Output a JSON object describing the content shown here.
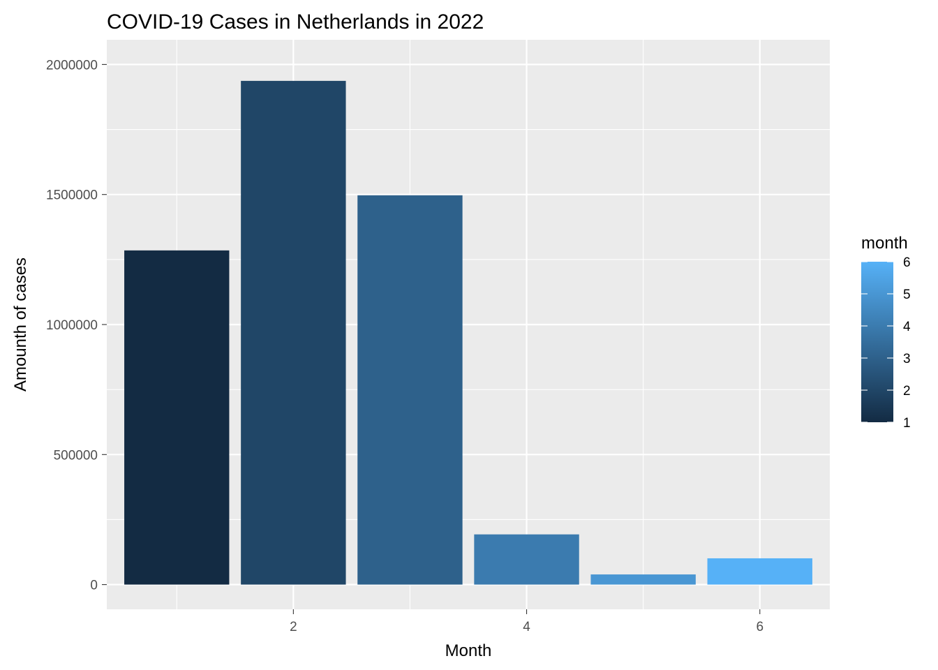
{
  "chart_data": {
    "type": "bar",
    "title": "COVID-19 Cases in Netherlands in 2022",
    "xlabel": "Month",
    "ylabel": "Amounth of cases",
    "x": [
      1,
      2,
      3,
      4,
      5,
      6
    ],
    "values": [
      1285000,
      1937000,
      1497000,
      193000,
      39000,
      101000
    ],
    "xlim": [
      0.4,
      6.6
    ],
    "ylim": [
      -95000,
      2095000
    ],
    "x_ticks": [
      2,
      4,
      6
    ],
    "x_tick_labels": [
      "2",
      "4",
      "6"
    ],
    "y_ticks": [
      0,
      500000,
      1000000,
      1500000,
      2000000
    ],
    "y_tick_labels": [
      "0",
      "500000",
      "1000000",
      "1500000",
      "2000000"
    ],
    "grid": true,
    "legend": {
      "title": "month",
      "type": "colorbar",
      "position": "right",
      "range": [
        1,
        6
      ],
      "ticks": [
        1,
        2,
        3,
        4,
        5,
        6
      ],
      "tick_labels": [
        "1",
        "2",
        "3",
        "4",
        "5",
        "6"
      ],
      "low_color": "#132B43",
      "high_color": "#56B1F7"
    },
    "colors": {
      "panel_background": "#EBEBEB",
      "grid": "#FFFFFF",
      "axis_text": "#4D4D4D",
      "title_text": "#000000"
    }
  }
}
